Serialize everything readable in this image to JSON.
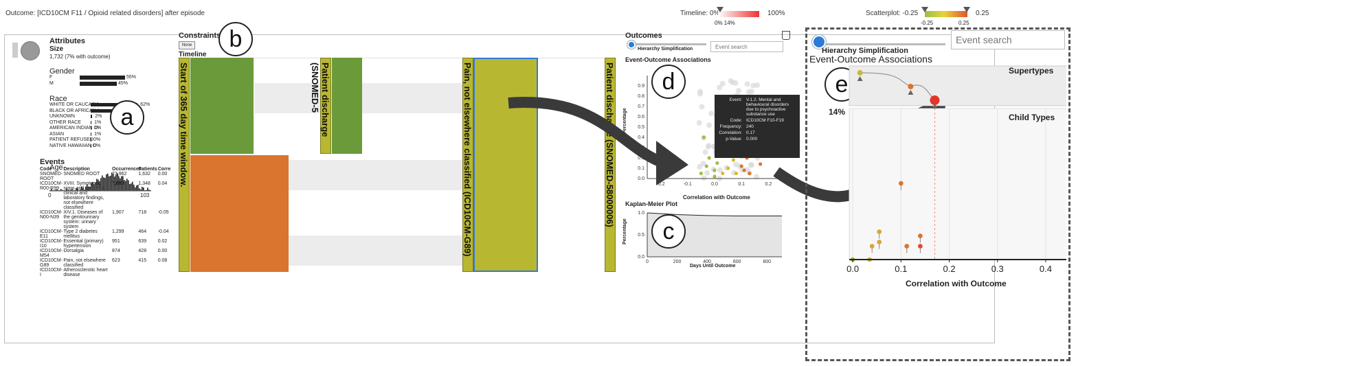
{
  "topbar": {
    "outcome_text": "Outcome: [ICD10CM F11 / Opioid related disorders] after episode",
    "timeline_label": "Timeline: 0%",
    "timeline_max": "100%",
    "timeline_sub": "0% 14%",
    "scatter_label": "Scatterplot: -0.25",
    "scatter_max": "0.25",
    "scatter_sub_min": "-0.25",
    "scatter_sub_max": "0.25"
  },
  "attributes": {
    "title": "Attributes",
    "size_label": "Size",
    "size_value": "1,732 (7% with outcome)",
    "gender_title": "Gender",
    "gender": [
      {
        "label": "F",
        "pct": "55%",
        "value": 0.55
      },
      {
        "label": "M",
        "pct": "45%",
        "value": 0.45
      }
    ],
    "race_title": "Race",
    "race": [
      {
        "label": "WHITE OR CAUCASIA",
        "pct": "62%",
        "value": 0.62
      },
      {
        "label": "BLACK OR AFRICAN /",
        "pct": "34%",
        "value": 0.34
      },
      {
        "label": "UNKNOWN",
        "pct": "2%",
        "value": 0.02
      },
      {
        "label": "OTHER RACE",
        "pct": "1%",
        "value": 0.01
      },
      {
        "label": "AMERICAN INDIAN OI",
        "pct": "1%",
        "value": 0.01
      },
      {
        "label": "ASIAN",
        "pct": "1%",
        "value": 0.01
      },
      {
        "label": "PATIENT REFUSED",
        "pct": "0%",
        "value": 0.0
      },
      {
        "label": "NATIVE HAWAIIAN O",
        "pct": "0%",
        "value": 0.0
      }
    ],
    "age_title": "Age",
    "age_min": "0",
    "age_max": "103"
  },
  "events": {
    "title": "Events",
    "headers": [
      "Code",
      "Description",
      "Occurrences",
      "Patients",
      "Corre"
    ],
    "rows": [
      {
        "code": "SNOMED-ROOT",
        "desc": "SNOMED ROOT",
        "occ": "73,962",
        "pat": "1,632",
        "corr": "0.00"
      },
      {
        "code": "ICD10CM-R00-R99",
        "desc": "XVIII. Symptoms, signs and abnormal clinical and laboratory findings, not elsewhere classified",
        "occ": "7,883",
        "pat": "1,348",
        "corr": "0.04"
      },
      {
        "code": "ICD10CM-N00-N39",
        "desc": "XIV.1. Diseases of the genitourinary system: urinary system",
        "occ": "1,907",
        "pat": "718",
        "corr": "-0.05"
      },
      {
        "code": "ICD10CM-E11",
        "desc": "Type 2 diabetes mellitus",
        "occ": "1,299",
        "pat": "464",
        "corr": "-0.04"
      },
      {
        "code": "ICD10CM-I10",
        "desc": "Essential (primary) hypertension",
        "occ": "951",
        "pat": "639",
        "corr": "0.02"
      },
      {
        "code": "ICD10CM-M54",
        "desc": "Dorsalgia",
        "occ": "874",
        "pat": "428",
        "corr": "0.00"
      },
      {
        "code": "ICD10CM-G89",
        "desc": "Pain, not elsewhere classified",
        "occ": "623",
        "pat": "415",
        "corr": "0.08"
      },
      {
        "code": "ICD10CM-I",
        "desc": "Atherosclerotic heart disease",
        "occ": "",
        "pat": "",
        "corr": ""
      }
    ]
  },
  "constraints": {
    "title": "Constraints",
    "none_button": "None",
    "timeline_title": "Timeline",
    "blocks": [
      "Start of 365 day time window.",
      "Patient discharge (SNOMED-5",
      "Pain, not elsewhere classified (ICD10CM-G89)",
      "Patient discharge (SNOMED-58000006)"
    ]
  },
  "outcomes": {
    "title": "Outcomes",
    "hierarchy_label": "Hierarchy Simplification",
    "search_placeholder": "Event search",
    "assoc_title": "Event-Outcome Associations",
    "ylabel": "Percentage",
    "xlabel": "Correlation with Outcome",
    "tooltip": {
      "event_key": "Event:",
      "event_val": "V.1.2. Mental and behavioural disorders due to psychoactive substance use",
      "code_key": "Code:",
      "code_val": "ICD10CM F10-F19",
      "freq_key": "Frequency:",
      "freq_val": "240",
      "corr_key": "Correlation:",
      "corr_val": "0.17",
      "p_key": "p-Value:",
      "p_val": "0.000"
    },
    "km_title": "Kaplan-Meier Plot",
    "km_ylabel": "Percentage",
    "km_xlabel": "Days Until Outcome"
  },
  "zoom": {
    "hierarchy_label": "Hierarchy Simplification",
    "search_placeholder": "Event search",
    "assoc_title": "Event-Outcome Associations",
    "supertypes": "Supertypes",
    "child_types": "Child Types",
    "pct_label": "14%",
    "xlabel": "Correlation with Outcome"
  },
  "callouts": {
    "a": "a",
    "b": "b",
    "c": "c",
    "d": "d",
    "e": "e"
  },
  "colors": {
    "green": "#6a9a3a",
    "orange": "#d9752f",
    "olive": "#b8b732",
    "accent_blue": "#2f7ad6"
  },
  "chart_data": [
    {
      "type": "scatter",
      "name": "event-outcome-associations",
      "xlabel": "Correlation with Outcome",
      "ylabel": "Percentage",
      "xlim": [
        -0.25,
        0.25
      ],
      "ylim": [
        0,
        1.0
      ],
      "xticks": [
        "-0.2",
        "-0.1",
        "0.0",
        "0.1",
        "0.2"
      ],
      "yticks": [
        "0.0",
        "0.1",
        "0.2",
        "0.3",
        "0.4",
        "0.5",
        "0.6",
        "0.7",
        "0.8",
        "0.9"
      ],
      "points": [
        {
          "x": -0.05,
          "y": 0.05
        },
        {
          "x": -0.03,
          "y": 0.12
        },
        {
          "x": -0.02,
          "y": 0.2
        },
        {
          "x": 0.0,
          "y": 0.08
        },
        {
          "x": 0.01,
          "y": 0.15
        },
        {
          "x": 0.02,
          "y": 0.3
        },
        {
          "x": 0.03,
          "y": 0.05
        },
        {
          "x": 0.04,
          "y": 0.22
        },
        {
          "x": 0.05,
          "y": 0.1
        },
        {
          "x": 0.06,
          "y": 0.35
        },
        {
          "x": 0.07,
          "y": 0.18
        },
        {
          "x": 0.08,
          "y": 0.05
        },
        {
          "x": 0.09,
          "y": 0.25
        },
        {
          "x": 0.1,
          "y": 0.12
        },
        {
          "x": 0.11,
          "y": 0.08
        },
        {
          "x": 0.12,
          "y": 0.2
        },
        {
          "x": 0.13,
          "y": 0.05
        },
        {
          "x": -0.04,
          "y": 0.4
        },
        {
          "x": 0.02,
          "y": 0.5
        },
        {
          "x": 0.0,
          "y": 0.02
        },
        {
          "x": 0.17,
          "y": 0.14
        }
      ]
    },
    {
      "type": "line",
      "name": "kaplan-meier",
      "xlabel": "Days Until Outcome",
      "ylabel": "Percentage",
      "xlim": [
        0,
        900
      ],
      "ylim": [
        0,
        1.0
      ],
      "xticks": [
        "0",
        "200",
        "400",
        "600",
        "800"
      ],
      "yticks": [
        "0.0",
        "0.5",
        "1.0"
      ],
      "x": [
        0,
        100,
        200,
        400,
        600,
        800,
        900
      ],
      "y": [
        1.0,
        0.98,
        0.96,
        0.94,
        0.93,
        0.93,
        0.93
      ]
    },
    {
      "type": "scatter",
      "name": "zoomed-associations",
      "xlabel": "Correlation with Outcome",
      "xlim": [
        -0.05,
        0.42
      ],
      "xticks": [
        "0.0",
        "0.1",
        "0.2",
        "0.3",
        "0.4"
      ],
      "ylim": [
        0,
        14
      ],
      "supertypes": [
        {
          "x": 0.015,
          "level": 0
        },
        {
          "x": 0.12,
          "level": 1
        },
        {
          "x": 0.17,
          "level": 2
        }
      ],
      "children": [
        {
          "x": 0.1,
          "y": 7.4,
          "color": "#d9752f"
        },
        {
          "x": 0.055,
          "y": 2.7,
          "color": "#d9a63a"
        },
        {
          "x": 0.14,
          "y": 2.3,
          "color": "#d9752f"
        },
        {
          "x": 0.055,
          "y": 1.7,
          "color": "#d9a63a"
        },
        {
          "x": 0.112,
          "y": 1.3,
          "color": "#d9752f"
        },
        {
          "x": 0.14,
          "y": 1.3,
          "color": "#e14a3a"
        },
        {
          "x": 0.04,
          "y": 1.3,
          "color": "#d9a63a"
        },
        {
          "x": 0.0,
          "y": 0.0,
          "color": "#a8b840"
        },
        {
          "x": 0.035,
          "y": 0.0,
          "color": "#c8b840"
        }
      ]
    }
  ]
}
